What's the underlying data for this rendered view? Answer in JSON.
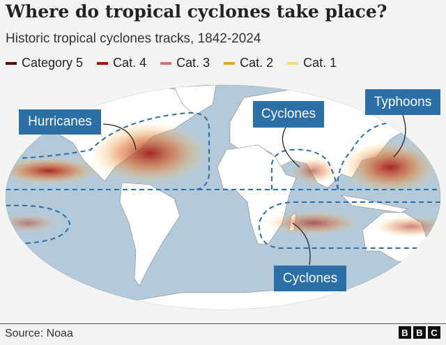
{
  "title": "Where do tropical cyclones take place?",
  "subtitle": "Historic tropical cyclones tracks, 1842-2024",
  "legend": [
    {
      "label": "Category 5",
      "color": "#5a0a0a"
    },
    {
      "label": "Cat. 4",
      "color": "#a3120f"
    },
    {
      "label": "Cat. 3",
      "color": "#d47474"
    },
    {
      "label": "Cat. 2",
      "color": "#f0a030"
    },
    {
      "label": "Cat. 1",
      "color": "#f8dc78"
    }
  ],
  "regions": {
    "hurricanes": "Hurricanes",
    "cyclones_north": "Cyclones",
    "typhoons": "Typhoons",
    "cyclones_south": "Cyclones"
  },
  "colors": {
    "ocean": "#b4c9da",
    "land": "#ffffff",
    "label_box": "#2c6ea6",
    "dashed_region": "#2c6ea6"
  },
  "source": "Source: Noaa",
  "logo": [
    "B",
    "B",
    "C"
  ]
}
